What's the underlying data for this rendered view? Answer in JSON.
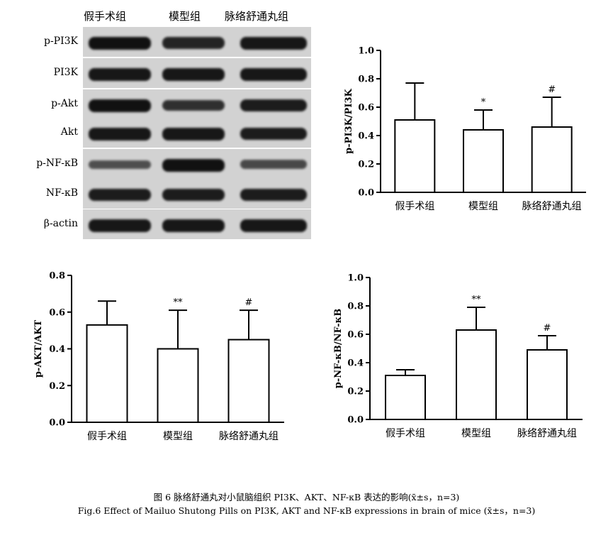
{
  "blot": {
    "lane_headers": [
      "假手术组",
      "模型组",
      "脉络舒通丸组"
    ],
    "rows": [
      {
        "label": "p-PI3K",
        "intensity": [
          1.0,
          0.85,
          0.95
        ]
      },
      {
        "label": "PI3K",
        "intensity": [
          0.95,
          0.95,
          0.95
        ]
      },
      {
        "label": "p-Akt",
        "intensity": [
          1.0,
          0.75,
          0.9
        ]
      },
      {
        "label": "Akt",
        "intensity": [
          0.95,
          0.95,
          0.9
        ]
      },
      {
        "label": "p-NF-κB",
        "intensity": [
          0.5,
          1.0,
          0.55
        ]
      },
      {
        "label": "NF-κB",
        "intensity": [
          0.9,
          0.9,
          0.9
        ]
      },
      {
        "label": "β-actin",
        "intensity": [
          0.95,
          0.95,
          0.95
        ]
      }
    ]
  },
  "chart_data": [
    {
      "type": "bar",
      "ylabel": "p-PI3K/PI3K",
      "categories": [
        "假手术组",
        "模型组",
        "脉络舒通丸组"
      ],
      "values": [
        0.51,
        0.44,
        0.46
      ],
      "errors": [
        0.26,
        0.14,
        0.21
      ],
      "annotations": [
        "",
        "*",
        "#"
      ],
      "ylim": [
        0,
        1.0
      ],
      "yticks": [
        "0.0",
        "0.2",
        "0.4",
        "0.6",
        "0.8",
        "1.0"
      ]
    },
    {
      "type": "bar",
      "ylabel": "p-AKT/AKT",
      "categories": [
        "假手术组",
        "模型组",
        "脉络舒通丸组"
      ],
      "values": [
        0.53,
        0.4,
        0.45
      ],
      "errors": [
        0.13,
        0.21,
        0.16
      ],
      "annotations": [
        "",
        "**",
        "#"
      ],
      "ylim": [
        0,
        0.8
      ],
      "yticks": [
        "0.0",
        "0.2",
        "0.4",
        "0.6",
        "0.8"
      ]
    },
    {
      "type": "bar",
      "ylabel": "p-NF-κB/NF-κB",
      "categories": [
        "假手术组",
        "模型组",
        "脉络舒通丸组"
      ],
      "values": [
        0.31,
        0.63,
        0.49
      ],
      "errors": [
        0.04,
        0.16,
        0.1
      ],
      "annotations": [
        "",
        "**",
        "#"
      ],
      "ylim": [
        0,
        1.0
      ],
      "yticks": [
        "0.0",
        "0.2",
        "0.4",
        "0.6",
        "0.8",
        "1.0"
      ]
    }
  ],
  "caption": {
    "zh": "图 6  脉络舒通丸对小鼠脑组织 PI3K、AKT、NF-κB 表达的影响(x̄±s，n=3)",
    "en": "Fig.6 Effect of Mailuo Shutong Pills on PI3K, AKT and NF-κB expressions in brain of mice (x̄±s，n=3)"
  }
}
